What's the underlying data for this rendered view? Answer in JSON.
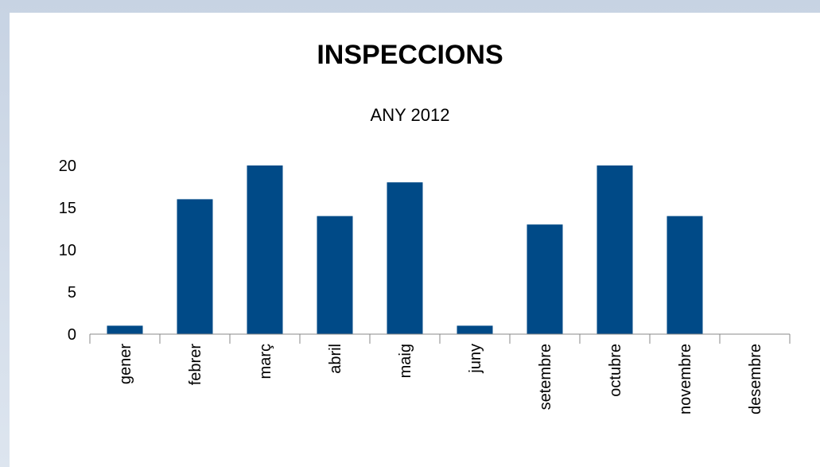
{
  "chart_data": {
    "type": "bar",
    "title": "INSPECCIONS",
    "subtitle": "ANY 2012",
    "categories": [
      "gener",
      "febrer",
      "març",
      "abril",
      "maig",
      "juny",
      "setembre",
      "octubre",
      "novembre",
      "desembre"
    ],
    "values": [
      1,
      16,
      20,
      14,
      18,
      1,
      13,
      20,
      14,
      0
    ],
    "ylim": [
      0,
      20
    ],
    "yticks": [
      0,
      5,
      10,
      15,
      20
    ],
    "grid": false,
    "bar_color": "#004a87"
  },
  "colors": {
    "background": "#c7d3e3",
    "panel": "#ffffff",
    "bar": "#004a87",
    "axis": "#888888"
  }
}
